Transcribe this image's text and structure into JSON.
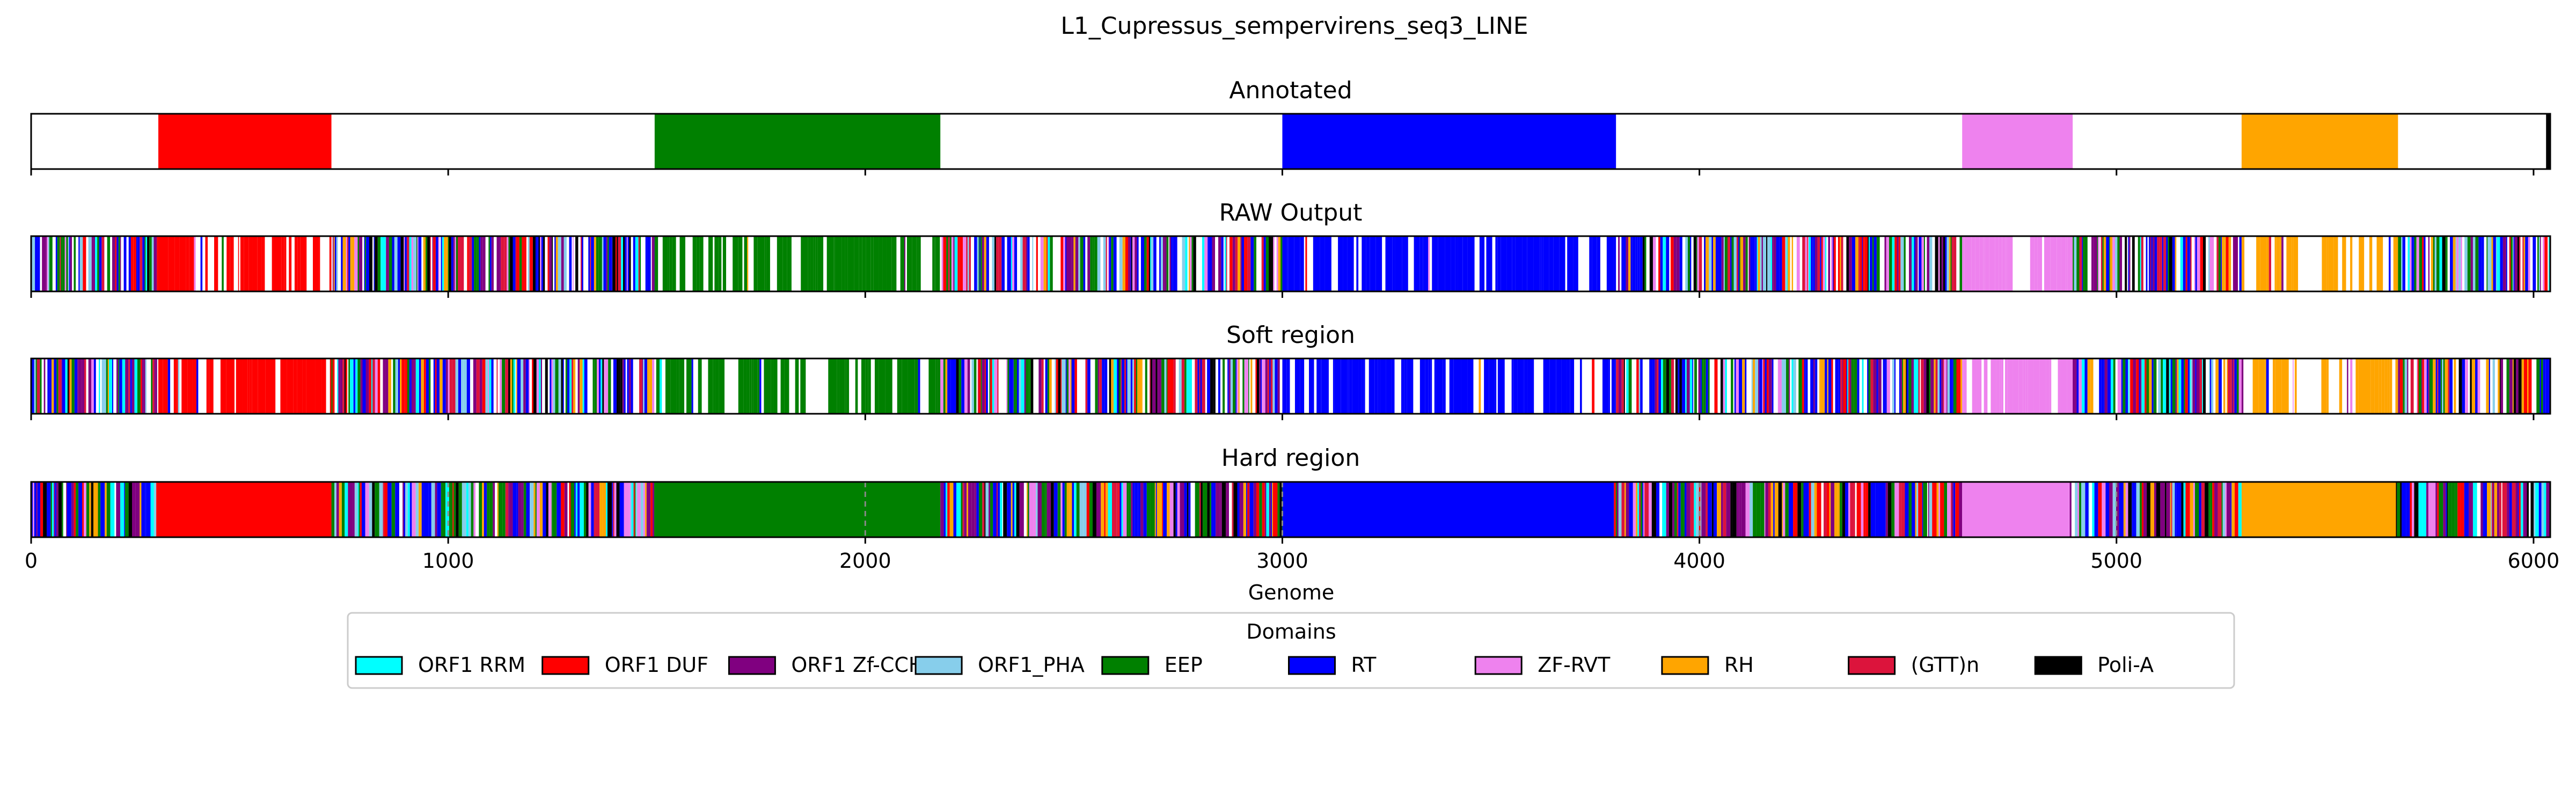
{
  "chart_data": {
    "type": "track",
    "title": "L1_Cupressus_sempervirens_seq3_LINE",
    "xlabel": "Genome",
    "xlim": [
      0,
      6040
    ],
    "xticks": [
      0,
      1000,
      2000,
      3000,
      4000,
      5000,
      6000
    ],
    "grid_lines_on_hard": [
      1000,
      2000,
      3000,
      4000,
      5000
    ],
    "legend": {
      "title": "Domains",
      "placement": "bottom-center",
      "entries": [
        {
          "key": "orf1_rrm",
          "label": "ORF1 RRM",
          "color": "#00ffff"
        },
        {
          "key": "orf1_duf",
          "label": "ORF1 DUF",
          "color": "#ff0000"
        },
        {
          "key": "orf1_zf",
          "label": "ORF1 Zf-CCHC",
          "color": "#800080"
        },
        {
          "key": "orf1_pha",
          "label": "ORF1_PHA",
          "color": "#87ceeb"
        },
        {
          "key": "eep",
          "label": "EEP",
          "color": "#008000"
        },
        {
          "key": "rt",
          "label": "RT",
          "color": "#0000ff"
        },
        {
          "key": "zf_rvt",
          "label": "ZF-RVT",
          "color": "#ee82ee"
        },
        {
          "key": "rh",
          "label": "RH",
          "color": "#ffa500"
        },
        {
          "key": "gttn",
          "label": "(GTT)n",
          "color": "#dc143c"
        },
        {
          "key": "polia",
          "label": "Poli-A",
          "color": "#000000"
        }
      ]
    },
    "tracks": [
      {
        "name": "Annotated",
        "segments": [
          {
            "domain": "orf1_duf",
            "start": 305,
            "end": 720
          },
          {
            "domain": "eep",
            "start": 1495,
            "end": 2180
          },
          {
            "domain": "rt",
            "start": 3000,
            "end": 3800
          },
          {
            "domain": "zf_rvt",
            "start": 4630,
            "end": 4895
          },
          {
            "domain": "rh",
            "start": 5300,
            "end": 5675
          },
          {
            "domain": "polia",
            "start": 6030,
            "end": 6040
          }
        ]
      },
      {
        "name": "RAW Output",
        "pattern": "raw",
        "regions": [
          {
            "domain": "mixed",
            "start": 0,
            "end": 305
          },
          {
            "domain": "orf1_duf",
            "start": 305,
            "end": 720
          },
          {
            "domain": "mixed",
            "start": 720,
            "end": 1495
          },
          {
            "domain": "eep",
            "start": 1495,
            "end": 2180
          },
          {
            "domain": "mixed",
            "start": 2180,
            "end": 3000
          },
          {
            "domain": "rt",
            "start": 3000,
            "end": 3800
          },
          {
            "domain": "mixed",
            "start": 3800,
            "end": 4630
          },
          {
            "domain": "zf_rvt",
            "start": 4630,
            "end": 4895
          },
          {
            "domain": "mixed",
            "start": 4895,
            "end": 5300
          },
          {
            "domain": "rh",
            "start": 5300,
            "end": 5675
          },
          {
            "domain": "mixed",
            "start": 5675,
            "end": 6040
          }
        ]
      },
      {
        "name": "Soft region",
        "pattern": "raw",
        "regions": [
          {
            "domain": "mixed",
            "start": 0,
            "end": 305
          },
          {
            "domain": "orf1_duf",
            "start": 305,
            "end": 720
          },
          {
            "domain": "mixed",
            "start": 720,
            "end": 1495
          },
          {
            "domain": "eep",
            "start": 1495,
            "end": 2180
          },
          {
            "domain": "mixed",
            "start": 2180,
            "end": 3000
          },
          {
            "domain": "rt",
            "start": 3000,
            "end": 3800
          },
          {
            "domain": "mixed",
            "start": 3800,
            "end": 4630
          },
          {
            "domain": "zf_rvt",
            "start": 4630,
            "end": 4895
          },
          {
            "domain": "mixed",
            "start": 4895,
            "end": 5300
          },
          {
            "domain": "rh",
            "start": 5300,
            "end": 5675
          },
          {
            "domain": "mixed",
            "start": 5675,
            "end": 6040
          }
        ]
      },
      {
        "name": "Hard region",
        "pattern": "hard",
        "regions": [
          {
            "domain": "mixed",
            "start": 0,
            "end": 300
          },
          {
            "domain": "orf1_duf",
            "start": 300,
            "end": 720
          },
          {
            "domain": "mixed",
            "start": 720,
            "end": 1495
          },
          {
            "domain": "eep",
            "start": 1495,
            "end": 2180
          },
          {
            "domain": "mixed",
            "start": 2180,
            "end": 3000
          },
          {
            "domain": "rt",
            "start": 3000,
            "end": 3795
          },
          {
            "domain": "mixed",
            "start": 3795,
            "end": 4630
          },
          {
            "domain": "zf_rvt",
            "start": 4630,
            "end": 4885
          },
          {
            "domain": "mixed",
            "start": 4885,
            "end": 5300
          },
          {
            "domain": "rh",
            "start": 5300,
            "end": 5670
          },
          {
            "domain": "mixed",
            "start": 5670,
            "end": 6040
          }
        ]
      }
    ]
  }
}
